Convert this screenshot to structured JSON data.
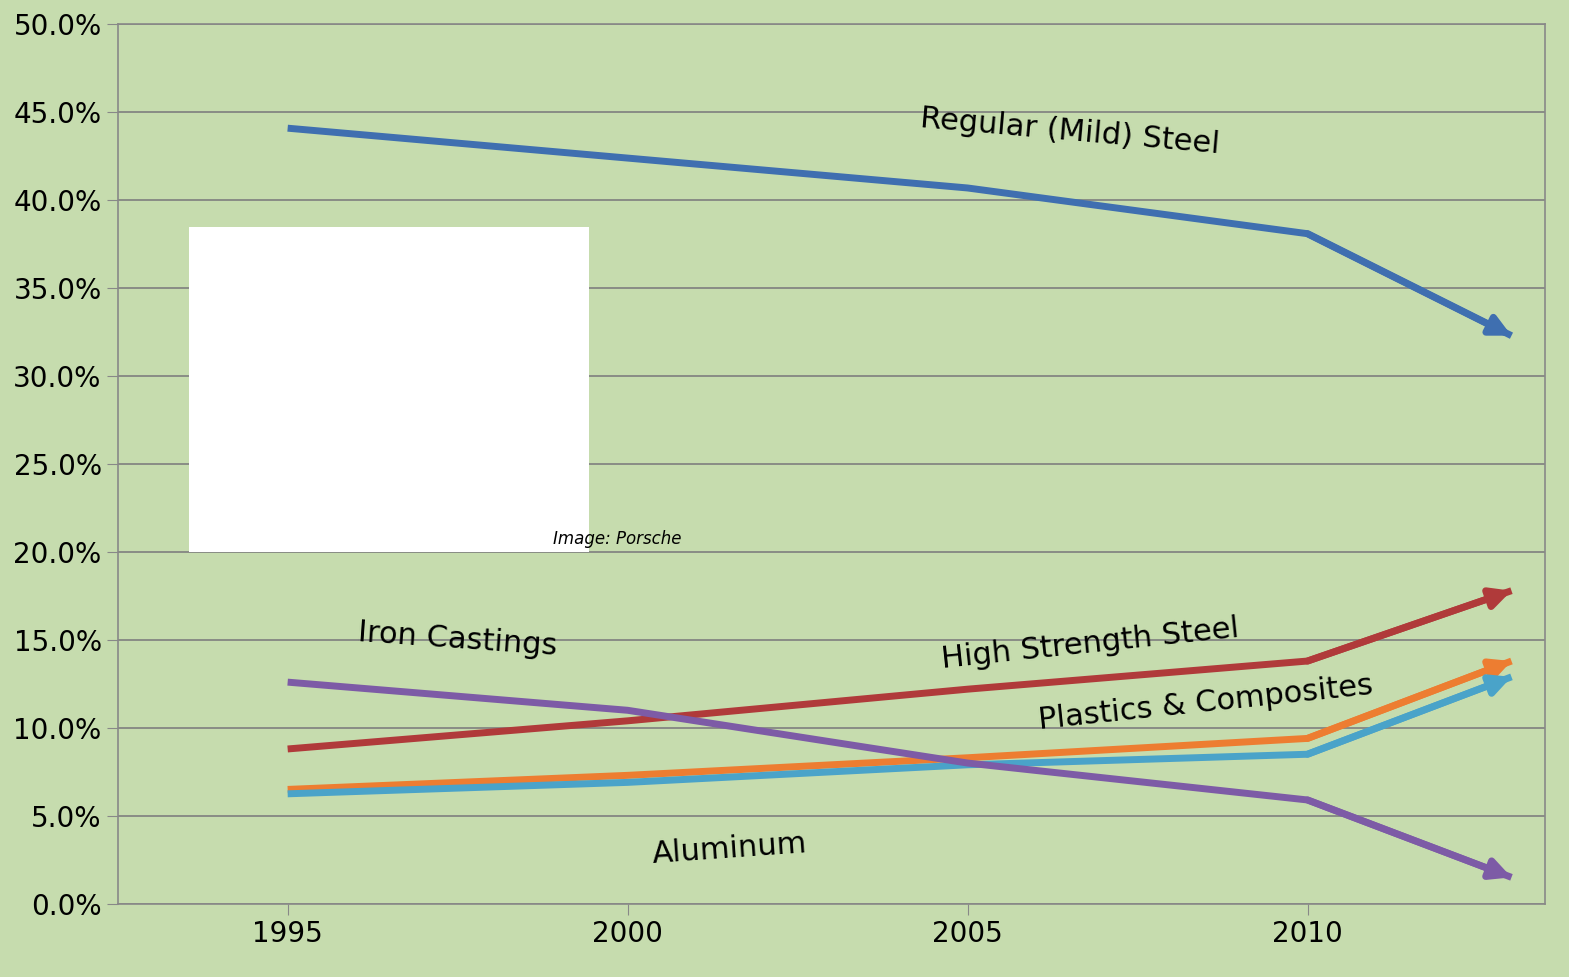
{
  "chart_data": {
    "type": "line",
    "x": [
      1995,
      2000,
      2005,
      2010,
      2013
    ],
    "series": [
      {
        "name": "Regular (Mild) Steel",
        "color": "#3f6fb0",
        "values": [
          44.1,
          42.4,
          40.7,
          38.1,
          32.3
        ]
      },
      {
        "name": "High Strength Steel",
        "color": "#b03a3a",
        "values": [
          8.8,
          10.4,
          12.2,
          13.8,
          17.8
        ]
      },
      {
        "name": "Plastics & Composites",
        "color": "#ed7d31",
        "values": [
          6.5,
          7.3,
          8.3,
          9.4,
          13.8
        ]
      },
      {
        "name": "Aluminum",
        "color": "#4aa3c9",
        "values": [
          6.25,
          6.9,
          7.9,
          8.5,
          12.9
        ]
      },
      {
        "name": "Iron Castings",
        "color": "#7d5ba6",
        "values": [
          12.6,
          11.0,
          8.0,
          5.9,
          1.5
        ]
      }
    ],
    "xlim": [
      1992.5,
      2013.5
    ],
    "xticks": [
      1995,
      2000,
      2005,
      2010
    ],
    "ylim": [
      0,
      50
    ],
    "yticks": [
      {
        "value": 0,
        "label": "0.0%"
      },
      {
        "value": 5,
        "label": "5.0%"
      },
      {
        "value": 10,
        "label": "10.0%"
      },
      {
        "value": 15,
        "label": "15.0%"
      },
      {
        "value": 20,
        "label": "20.0%"
      },
      {
        "value": 25,
        "label": "25.0%"
      },
      {
        "value": 30,
        "label": "30.0%"
      },
      {
        "value": 35,
        "label": "35.0%"
      },
      {
        "value": 40,
        "label": "40.0%"
      },
      {
        "value": 45,
        "label": "45.0%"
      },
      {
        "value": 50,
        "label": "50.0%"
      }
    ],
    "grid": true,
    "annotations": [
      "Image: Porsche"
    ]
  }
}
